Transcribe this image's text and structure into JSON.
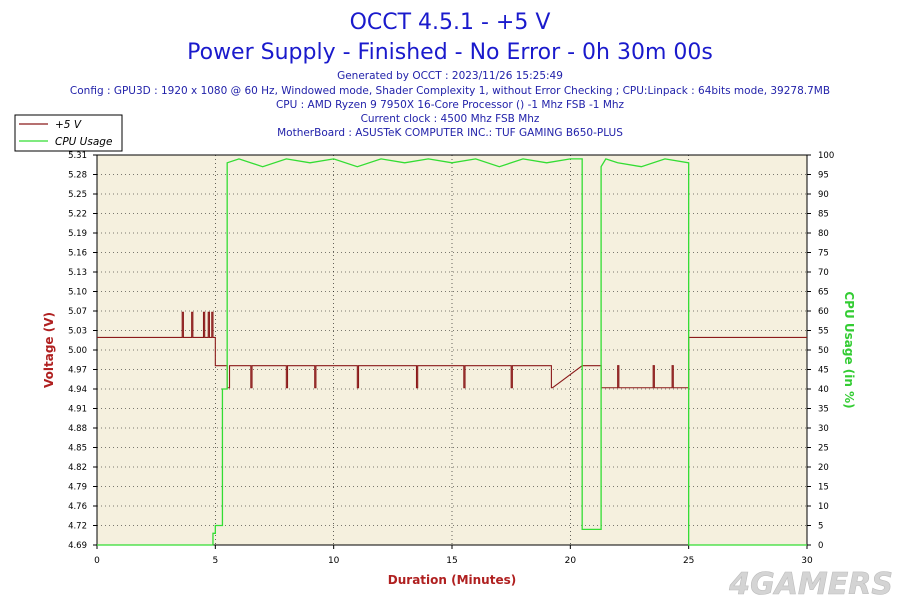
{
  "header": {
    "title": "OCCT 4.5.1 - +5 V",
    "subtitle": "Power Supply - Finished - No Error - 0h 30m 00s",
    "info_lines": [
      "Generated by OCCT : 2023/11/26 15:25:49",
      "Config : GPU3D : 1920 x 1080 @ 60 Hz, Windowed mode, Shader Complexity 1, without Error Checking ; CPU:Linpack : 64bits mode, 39278.7MB",
      "CPU : AMD Ryzen 9 7950X 16-Core Processor () -1 Mhz FSB -1 Mhz",
      "Current clock : 4500 Mhz FSB  Mhz",
      "MotherBoard : ASUSTeK COMPUTER INC.: TUF GAMING B650-PLUS"
    ]
  },
  "watermark": "4GAMERS",
  "colors": {
    "title": "#1a1acc",
    "info": "#2222aa",
    "voltage": "#8b1a1a",
    "cpu": "#33dd33",
    "plot_bg": "#f5f0de",
    "grid": "#000000"
  },
  "chart_data": {
    "type": "line",
    "xlabel": "Duration (Minutes)",
    "ylabel_left": "Voltage (V)",
    "ylabel_right": "CPU Usage (in %)",
    "xlim": [
      0,
      30
    ],
    "ylim_left": [
      4.69,
      5.31
    ],
    "ylim_right": [
      0,
      100
    ],
    "x_ticks": [
      "0",
      "5",
      "10",
      "15",
      "20",
      "25",
      "30"
    ],
    "y_left_ticks": [
      "4.69",
      "4.72",
      "4.76",
      "4.79",
      "4.82",
      "4.85",
      "4.88",
      "4.91",
      "4.94",
      "4.97",
      "5.00",
      "5.03",
      "5.07",
      "5.10",
      "5.13",
      "5.16",
      "5.19",
      "5.22",
      "5.25",
      "5.28",
      "5.31"
    ],
    "y_right_ticks": [
      "0",
      "5",
      "10",
      "15",
      "20",
      "25",
      "30",
      "35",
      "40",
      "45",
      "50",
      "55",
      "60",
      "65",
      "70",
      "75",
      "80",
      "85",
      "90",
      "95",
      "100"
    ],
    "grid": true,
    "legend_position": "top-left",
    "series": [
      {
        "name": "+5 V",
        "axis": "left",
        "color": "#8b1a1a",
        "x": [
          0,
          3.6,
          3.6,
          3.65,
          3.65,
          4.0,
          4.0,
          4.05,
          4.05,
          4.5,
          4.5,
          4.55,
          4.55,
          4.7,
          4.7,
          4.75,
          4.75,
          4.85,
          4.85,
          4.9,
          4.9,
          5.0,
          5.0,
          5.5,
          5.5,
          5.6,
          5.6,
          6.5,
          6.5,
          6.55,
          6.55,
          8.0,
          8.0,
          8.05,
          8.05,
          9.2,
          9.2,
          9.25,
          9.25,
          11.0,
          11.0,
          11.05,
          11.05,
          13.5,
          13.5,
          13.55,
          13.55,
          15.5,
          15.5,
          15.55,
          15.55,
          17.5,
          17.5,
          17.55,
          17.55,
          19.2,
          19.2,
          19.25,
          19.25,
          20.5,
          20.5,
          21.3,
          21.3,
          22.0,
          22.0,
          22.05,
          22.05,
          23.5,
          23.5,
          23.55,
          23.55,
          24.3,
          24.3,
          24.35,
          24.35,
          25.0,
          25.0,
          30
        ],
        "y": [
          5.02,
          5.02,
          5.06,
          5.06,
          5.02,
          5.02,
          5.06,
          5.06,
          5.02,
          5.02,
          5.06,
          5.06,
          5.02,
          5.02,
          5.06,
          5.06,
          5.02,
          5.02,
          5.06,
          5.06,
          5.02,
          5.02,
          4.975,
          4.975,
          4.94,
          4.94,
          4.975,
          4.975,
          4.94,
          4.94,
          4.975,
          4.975,
          4.94,
          4.94,
          4.975,
          4.975,
          4.94,
          4.94,
          4.975,
          4.975,
          4.94,
          4.94,
          4.975,
          4.975,
          4.94,
          4.94,
          4.975,
          4.975,
          4.94,
          4.94,
          4.975,
          4.975,
          4.94,
          4.94,
          4.975,
          4.975,
          4.94,
          4.94,
          4.94,
          4.975,
          4.975,
          4.975,
          4.94,
          4.94,
          4.975,
          4.975,
          4.94,
          4.94,
          4.975,
          4.975,
          4.94,
          4.94,
          4.975,
          4.975,
          4.94,
          4.94,
          5.02,
          5.02
        ]
      },
      {
        "name": "CPU Usage",
        "axis": "right",
        "color": "#33dd33",
        "x": [
          0,
          4.9,
          4.9,
          5.0,
          5.0,
          5.3,
          5.3,
          5.5,
          5.5,
          6.0,
          7.0,
          8.0,
          9.0,
          10.0,
          11.0,
          12.0,
          13.0,
          14.0,
          15.0,
          16.0,
          17.0,
          18.0,
          19.0,
          20.0,
          20.5,
          20.5,
          21.3,
          21.3,
          21.5,
          22.0,
          23.0,
          24.0,
          25.0,
          25.0,
          30
        ],
        "y": [
          0,
          0,
          3,
          3,
          5,
          5,
          40,
          40,
          98,
          99,
          97,
          99,
          98,
          99,
          97,
          99,
          98,
          99,
          98,
          99,
          97,
          99,
          98,
          99,
          99,
          4,
          4,
          97,
          99,
          98,
          97,
          99,
          98,
          0,
          0
        ]
      }
    ]
  }
}
